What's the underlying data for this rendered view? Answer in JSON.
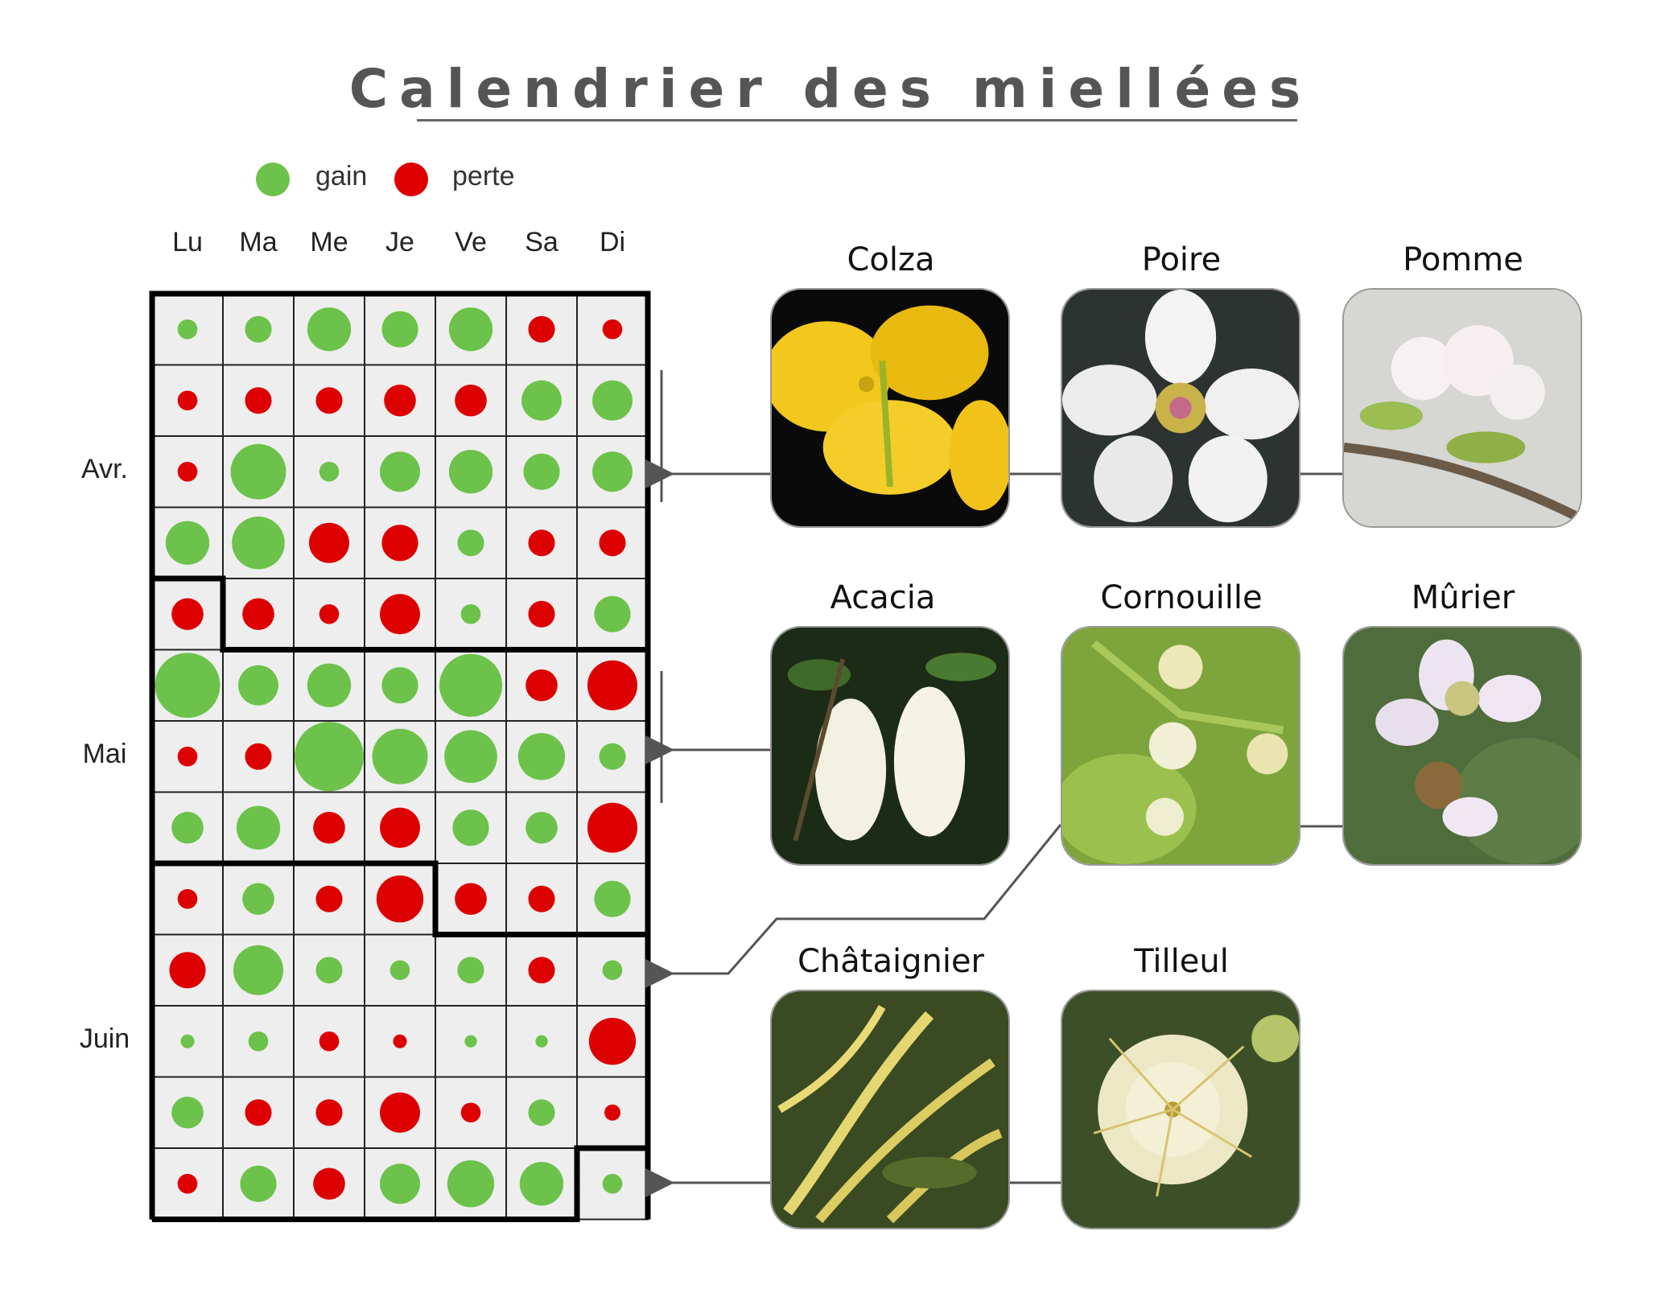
{
  "title": "Calendrier des miellées",
  "legend": [
    {
      "label": "gain",
      "color": "#6cc24a"
    },
    {
      "label": "perte",
      "color": "#dd0000"
    }
  ],
  "colors": {
    "gain": "#6cc24a",
    "loss": "#dd0000",
    "cell": "#eeeeee",
    "grid": "#222222"
  },
  "chart_data": {
    "type": "heatmap",
    "title": "Calendrier des miellées",
    "columns": [
      "Lu",
      "Ma",
      "Me",
      "Je",
      "Ve",
      "Sa",
      "Di"
    ],
    "rows": [
      "Avr.",
      "Mai",
      "Juin"
    ],
    "row_label_positions": [
      2,
      6,
      10
    ],
    "month_start_cells": [
      [
        4,
        1
      ],
      [
        8,
        4
      ],
      [
        12,
        6
      ]
    ],
    "weeks": [
      [
        1,
        2,
        6,
        4,
        6,
        -2,
        -1
      ],
      [
        -1,
        -2,
        -2,
        -3,
        -3,
        5,
        5
      ],
      [
        -1,
        10,
        1,
        5,
        6,
        4,
        5
      ],
      [
        6,
        9,
        -5,
        -4,
        2,
        -2,
        -2
      ],
      [
        -3,
        -3,
        -1,
        -5,
        1,
        -2,
        4
      ],
      [
        14,
        5,
        6,
        4,
        13,
        -3,
        -8
      ],
      [
        -1,
        -2,
        16,
        10,
        9,
        7,
        2
      ],
      [
        3,
        6,
        -3,
        -5,
        4,
        3,
        -8
      ],
      [
        -1,
        3,
        -2,
        -7,
        -3,
        -2,
        4
      ],
      [
        -4,
        8,
        2,
        1,
        2,
        -2,
        1
      ],
      [
        0.4,
        1,
        -1,
        -0.4,
        0.3,
        0.3,
        -7
      ],
      [
        3,
        -2,
        -2,
        -5,
        -1,
        2,
        -0.6
      ],
      [
        -1,
        4,
        -3,
        5,
        7,
        6,
        1
      ]
    ],
    "legend": [
      "gain",
      "perte"
    ]
  },
  "flowers": [
    {
      "name": "Colza",
      "icon": "colza-photo"
    },
    {
      "name": "Poire",
      "icon": "poire-photo"
    },
    {
      "name": "Pomme",
      "icon": "pomme-photo"
    },
    {
      "name": "Acacia",
      "icon": "acacia-photo"
    },
    {
      "name": "Cornouille",
      "icon": "cornouille-photo"
    },
    {
      "name": "Mûrier",
      "icon": "murier-photo"
    },
    {
      "name": "Châtaignier",
      "icon": "chataignier-photo"
    },
    {
      "name": "Tilleul",
      "icon": "tilleul-photo"
    }
  ]
}
